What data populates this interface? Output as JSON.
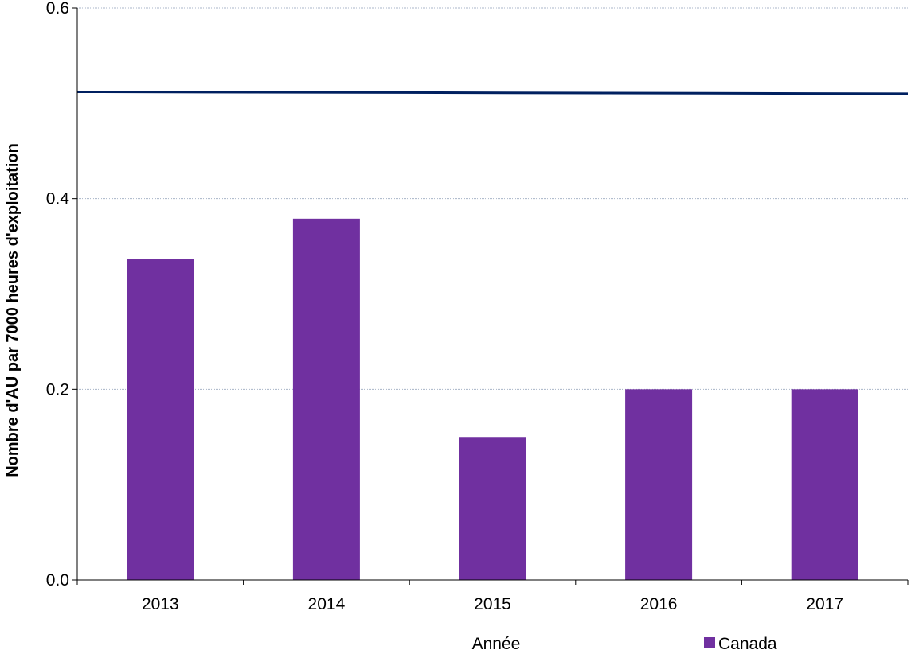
{
  "chart_data": {
    "type": "bar",
    "title": "",
    "xlabel": "Année",
    "ylabel": "Nombre d'AU par 7000 heures d'exploitation",
    "categories": [
      "2013",
      "2014",
      "2015",
      "2016",
      "2017"
    ],
    "series": [
      {
        "name": "Canada",
        "values": [
          0.337,
          0.379,
          0.15,
          0.2,
          0.2
        ],
        "color": "#7030a0"
      }
    ],
    "reference_line": {
      "y_start": 0.512,
      "y_end": 0.51,
      "color": "#002060"
    },
    "ylim": [
      0,
      0.6
    ],
    "yticks": [
      "0.0",
      "0.2",
      "0.4",
      "0.6"
    ],
    "grid": true,
    "legend_position": "bottom-right"
  }
}
